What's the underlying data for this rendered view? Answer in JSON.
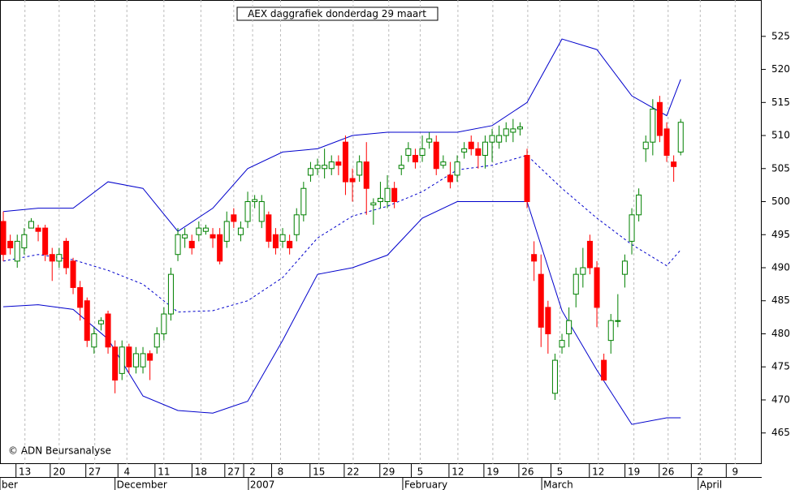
{
  "chart_data": {
    "type": "candlestick",
    "title": "AEX daggrafiek donderdag 29 maart",
    "annotation": "© ADN Beursanalyse",
    "up_color": "#008000",
    "down_color": "#ff0000",
    "band_color": "#0000cc",
    "grid": true,
    "ylim": [
      460.3,
      530.5
    ],
    "yticks": [
      465,
      470,
      475,
      480,
      485,
      490,
      495,
      500,
      505,
      510,
      515,
      520,
      525
    ],
    "xlim": [
      -0.47,
      108.6
    ],
    "xticks": [
      {
        "value": 3.1,
        "label": "13"
      },
      {
        "value": 8,
        "label": "20"
      },
      {
        "value": 13.1,
        "label": "27"
      },
      {
        "value": 17.7,
        "label": "4"
      },
      {
        "value": 23,
        "label": "11"
      },
      {
        "value": 28.3,
        "label": "18"
      },
      {
        "value": 33,
        "label": "27"
      },
      {
        "value": 35.7,
        "label": "2"
      },
      {
        "value": 39.7,
        "label": "8"
      },
      {
        "value": 45.2,
        "label": "15"
      },
      {
        "value": 50.1,
        "label": "22"
      },
      {
        "value": 55.2,
        "label": "29"
      },
      {
        "value": 59.7,
        "label": "5"
      },
      {
        "value": 65.1,
        "label": "12"
      },
      {
        "value": 70.1,
        "label": "19"
      },
      {
        "value": 75.1,
        "label": "26"
      },
      {
        "value": 79.7,
        "label": "5"
      },
      {
        "value": 85.2,
        "label": "12"
      },
      {
        "value": 90.3,
        "label": "19"
      },
      {
        "value": 95.2,
        "label": "26"
      },
      {
        "value": 99.8,
        "label": "2"
      },
      {
        "value": 104.8,
        "label": "9"
      }
    ],
    "month_labels": [
      {
        "value": -0.47,
        "label": "ber"
      },
      {
        "value": 16.0,
        "label": "December"
      },
      {
        "value": 35.1,
        "label": "2007"
      },
      {
        "value": 57.2,
        "label": "February"
      },
      {
        "value": 77.1,
        "label": "March"
      },
      {
        "value": 99.5,
        "label": "April"
      }
    ],
    "open": [
      497,
      494,
      491,
      493,
      496,
      496,
      496,
      492,
      491,
      494,
      491,
      487,
      485,
      478,
      481.5,
      483,
      478,
      474,
      478,
      475,
      475,
      477,
      478,
      480,
      483,
      492,
      494.5,
      494,
      495,
      495.5,
      495,
      495,
      494,
      498,
      495,
      497,
      500,
      497,
      498,
      495,
      494,
      494,
      495,
      498,
      504,
      505,
      505,
      505,
      506,
      509,
      503.5,
      504,
      506,
      499.5,
      500,
      500,
      502,
      505,
      507,
      507,
      507,
      509,
      509,
      505.5,
      504,
      504,
      507.5,
      509,
      508,
      507,
      509,
      509,
      510,
      510.5,
      511,
      507,
      492,
      489,
      484,
      471,
      478,
      480,
      486,
      489,
      494,
      490,
      476,
      479,
      482,
      489,
      494,
      498,
      508,
      509,
      515,
      511,
      506,
      507.5
    ],
    "high": [
      498.5,
      495,
      495,
      496,
      497.5,
      496.5,
      496.5,
      493,
      493,
      494.5,
      491.5,
      488,
      485.5,
      481,
      482.5,
      483.5,
      479,
      479,
      478.5,
      478,
      478,
      477.5,
      481,
      484,
      490,
      496,
      496,
      495,
      497,
      496.5,
      496,
      496,
      498.5,
      499,
      497,
      501.5,
      501,
      501,
      498.5,
      496,
      496,
      495,
      499,
      503,
      506,
      506.5,
      508,
      507,
      507,
      510,
      505,
      507,
      509,
      500.5,
      503,
      504,
      503,
      507,
      509,
      508,
      510,
      510.5,
      510,
      507,
      506,
      507,
      509,
      510,
      509,
      510,
      511,
      511.5,
      512,
      512.5,
      512,
      508,
      494,
      492,
      485,
      477,
      480,
      484,
      490,
      493,
      495,
      491,
      477,
      483,
      486,
      492,
      499,
      502,
      510,
      515.5,
      516,
      512,
      507,
      512.5
    ],
    "low": [
      491,
      492,
      490,
      492,
      496,
      494,
      491,
      488,
      490,
      489,
      486,
      482,
      478,
      477,
      480.5,
      477,
      471,
      473,
      474,
      474,
      474,
      473,
      477,
      479,
      482,
      491,
      493,
      492,
      494,
      495,
      493,
      490.5,
      493,
      496,
      494,
      496,
      499,
      496,
      493,
      492,
      493,
      492,
      494,
      497,
      503,
      504,
      503.5,
      504,
      504,
      501,
      500,
      503,
      498,
      496.5,
      499,
      499,
      499,
      504,
      506,
      505,
      506,
      508,
      504,
      505,
      502,
      503,
      506.5,
      507,
      505,
      505,
      506,
      508,
      509,
      509,
      510,
      499,
      488,
      478,
      477,
      470,
      477,
      478,
      484,
      487,
      489,
      481,
      473,
      477,
      481,
      487,
      492,
      497,
      506,
      507,
      509,
      506,
      503,
      507
    ],
    "close": [
      492,
      493,
      494,
      495,
      497,
      495.5,
      492,
      491,
      492,
      490,
      487,
      484,
      479,
      480,
      482,
      478,
      473,
      478,
      475,
      477,
      477,
      476,
      480,
      483,
      489,
      495,
      495,
      493,
      496,
      496,
      494.5,
      491,
      497,
      497,
      496,
      500,
      500.3,
      500,
      494,
      493,
      495,
      493,
      498,
      502,
      505,
      505.5,
      505.5,
      506,
      505.5,
      503,
      503,
      506,
      502,
      499.8,
      500.5,
      502,
      500,
      505.5,
      508,
      506,
      508,
      509.5,
      505,
      506,
      503,
      506,
      508,
      508,
      507,
      509,
      510,
      510,
      511,
      511,
      511.3,
      500,
      491,
      481,
      480,
      476,
      479,
      482,
      489,
      490,
      490,
      484,
      473,
      482,
      482,
      491,
      498,
      501,
      509,
      514,
      510,
      507,
      505.3,
      512
    ],
    "bands": [
      {
        "style": "solid",
        "x": [
          0,
          5,
          10,
          15,
          20,
          25,
          30,
          35,
          40,
          45,
          50,
          55,
          60,
          65,
          70,
          75,
          80,
          85,
          90,
          95,
          97
        ],
        "values": [
          498.5,
          499,
          499,
          503,
          502,
          495.5,
          499,
          505,
          507.5,
          508,
          510,
          510.5,
          510.5,
          510.5,
          511.5,
          515,
          524.6,
          523,
          516,
          513,
          518.5
        ]
      },
      {
        "style": "dashed",
        "x": [
          0,
          5,
          10,
          15,
          20,
          25,
          30,
          35,
          40,
          45,
          50,
          55,
          60,
          65,
          70,
          75,
          80,
          85,
          90,
          95,
          97
        ],
        "values": [
          491,
          492,
          491.2,
          489.6,
          487.5,
          483.3,
          483.5,
          485,
          488.5,
          494.5,
          497.8,
          499.3,
          501.5,
          504.8,
          505.5,
          507,
          502,
          497.5,
          493.5,
          490.3,
          492.7
        ]
      },
      {
        "style": "solid",
        "x": [
          0,
          5,
          10,
          15,
          20,
          25,
          30,
          35,
          40,
          45,
          50,
          55,
          60,
          65,
          70,
          75,
          80,
          85,
          90,
          95,
          97
        ],
        "values": [
          484.1,
          484.4,
          483.7,
          479.2,
          470.6,
          468.4,
          468,
          469.8,
          479,
          489,
          490,
          491.9,
          497.5,
          500,
          500,
          500,
          483.5,
          474.5,
          466.3,
          467.3,
          467.3
        ]
      }
    ]
  }
}
